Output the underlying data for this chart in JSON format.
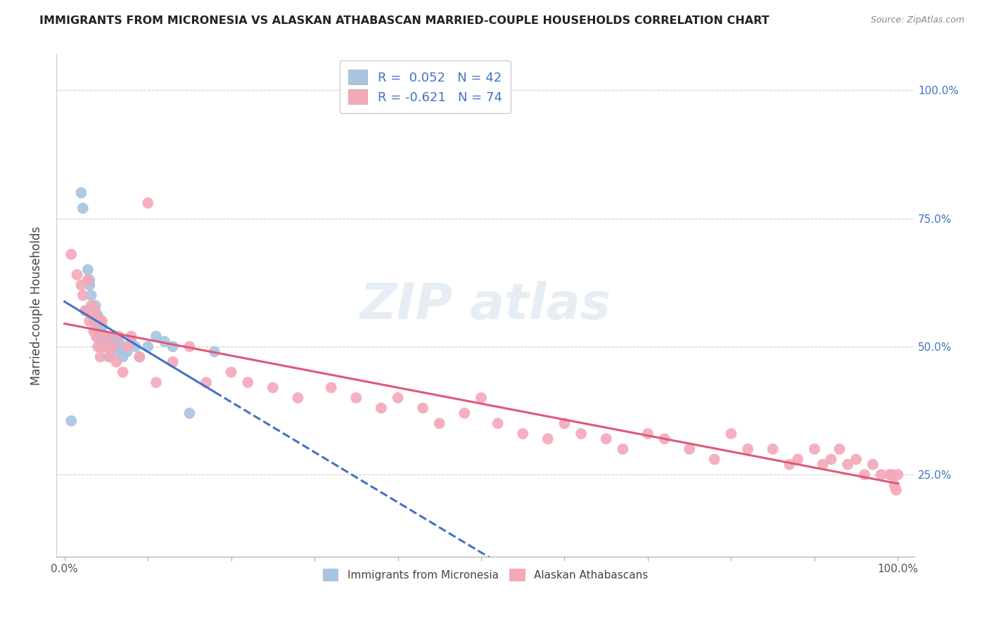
{
  "title": "IMMIGRANTS FROM MICRONESIA VS ALASKAN ATHABASCAN MARRIED-COUPLE HOUSEHOLDS CORRELATION CHART",
  "source": "Source: ZipAtlas.com",
  "ylabel": "Married-couple Households",
  "xlabel": "",
  "xlim": [
    -0.01,
    1.02
  ],
  "ylim": [
    0.09,
    1.07
  ],
  "yticks": [
    0.25,
    0.5,
    0.75,
    1.0
  ],
  "ytick_labels": [
    "25.0%",
    "50.0%",
    "75.0%",
    "100.0%"
  ],
  "legend_blue_label": "R =  0.052   N = 42",
  "legend_pink_label": "R = -0.621   N = 74",
  "legend_series_blue": "Immigrants from Micronesia",
  "legend_series_pink": "Alaskan Athabascans",
  "blue_color": "#a8c4e0",
  "pink_color": "#f4a8b8",
  "blue_line_color": "#4472c4",
  "pink_line_color": "#e05878",
  "blue_scatter_x": [
    0.008,
    0.02,
    0.022,
    0.025,
    0.028,
    0.03,
    0.03,
    0.032,
    0.035,
    0.037,
    0.038,
    0.04,
    0.04,
    0.042,
    0.043,
    0.044,
    0.045,
    0.046,
    0.047,
    0.048,
    0.05,
    0.05,
    0.052,
    0.053,
    0.055,
    0.056,
    0.058,
    0.06,
    0.062,
    0.065,
    0.068,
    0.07,
    0.075,
    0.08,
    0.085,
    0.09,
    0.1,
    0.11,
    0.12,
    0.13,
    0.15,
    0.18
  ],
  "blue_scatter_y": [
    0.355,
    0.8,
    0.77,
    0.57,
    0.65,
    0.62,
    0.63,
    0.6,
    0.55,
    0.58,
    0.53,
    0.52,
    0.56,
    0.51,
    0.5,
    0.53,
    0.54,
    0.5,
    0.52,
    0.51,
    0.5,
    0.52,
    0.5,
    0.48,
    0.51,
    0.49,
    0.5,
    0.52,
    0.49,
    0.51,
    0.5,
    0.48,
    0.49,
    0.51,
    0.5,
    0.48,
    0.5,
    0.52,
    0.51,
    0.5,
    0.37,
    0.49
  ],
  "pink_scatter_x": [
    0.008,
    0.015,
    0.02,
    0.022,
    0.025,
    0.028,
    0.03,
    0.032,
    0.033,
    0.035,
    0.037,
    0.038,
    0.04,
    0.042,
    0.043,
    0.045,
    0.047,
    0.05,
    0.052,
    0.055,
    0.058,
    0.062,
    0.065,
    0.07,
    0.075,
    0.08,
    0.09,
    0.1,
    0.11,
    0.13,
    0.15,
    0.17,
    0.2,
    0.22,
    0.25,
    0.28,
    0.32,
    0.35,
    0.38,
    0.4,
    0.43,
    0.45,
    0.48,
    0.5,
    0.52,
    0.55,
    0.58,
    0.6,
    0.62,
    0.65,
    0.67,
    0.7,
    0.72,
    0.75,
    0.78,
    0.8,
    0.82,
    0.85,
    0.87,
    0.88,
    0.9,
    0.91,
    0.92,
    0.93,
    0.94,
    0.95,
    0.96,
    0.97,
    0.98,
    0.99,
    0.993,
    0.996,
    0.998,
    1.0
  ],
  "pink_scatter_y": [
    0.68,
    0.64,
    0.62,
    0.6,
    0.57,
    0.63,
    0.55,
    0.58,
    0.56,
    0.53,
    0.57,
    0.52,
    0.5,
    0.55,
    0.48,
    0.55,
    0.5,
    0.52,
    0.5,
    0.48,
    0.5,
    0.47,
    0.52,
    0.45,
    0.5,
    0.52,
    0.48,
    0.78,
    0.43,
    0.47,
    0.5,
    0.43,
    0.45,
    0.43,
    0.42,
    0.4,
    0.42,
    0.4,
    0.38,
    0.4,
    0.38,
    0.35,
    0.37,
    0.4,
    0.35,
    0.33,
    0.32,
    0.35,
    0.33,
    0.32,
    0.3,
    0.33,
    0.32,
    0.3,
    0.28,
    0.33,
    0.3,
    0.3,
    0.27,
    0.28,
    0.3,
    0.27,
    0.28,
    0.3,
    0.27,
    0.28,
    0.25,
    0.27,
    0.25,
    0.25,
    0.25,
    0.23,
    0.22,
    0.25
  ]
}
